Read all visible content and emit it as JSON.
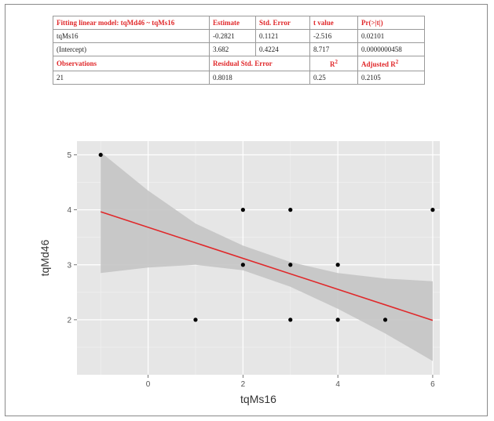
{
  "table": {
    "header": {
      "title": "Fitting linear model: tqMd46 ~ tqMs16",
      "estimate": "Estimate",
      "std_error": "Std. Error",
      "t_value": "t value",
      "pr": "Pr(>|t|)"
    },
    "rows": [
      {
        "term": "tqMs16",
        "estimate": "-0.2821",
        "std_error": "0.1121",
        "t_value": "-2.516",
        "pr": "0.02101"
      },
      {
        "term": "(Intercept)",
        "estimate": "3.682",
        "std_error": "0.4224",
        "t_value": "8.717",
        "pr": "0.0000000458"
      }
    ],
    "stats_header": {
      "observations": "Observations",
      "residual_se": "Residual Std. Error",
      "r2": "R",
      "adj_r2": "Adjusted R"
    },
    "stats": {
      "observations": "21",
      "residual_se": "0.8018",
      "r2": "0.25",
      "adj_r2": "0.2105"
    }
  },
  "colors": {
    "header_text": "#e0282a",
    "panel_bg": "#e6e6e6",
    "grid": "#ffffff",
    "fit_line": "#e0282a",
    "ribbon": "#c2c2c2",
    "point": "#000000"
  },
  "chart_data": {
    "type": "scatter",
    "xlabel": "tqMs16",
    "ylabel": "tqMd46",
    "xlim": [
      -1.5,
      6.15
    ],
    "ylim": [
      1.0,
      5.25
    ],
    "xticks": [
      0,
      2,
      4,
      6
    ],
    "yticks": [
      2,
      3,
      4,
      5
    ],
    "grid": true,
    "points": [
      {
        "x": -1,
        "y": 5
      },
      {
        "x": 1,
        "y": 2
      },
      {
        "x": 2,
        "y": 4
      },
      {
        "x": 2,
        "y": 3
      },
      {
        "x": 3,
        "y": 4
      },
      {
        "x": 3,
        "y": 3
      },
      {
        "x": 3,
        "y": 2
      },
      {
        "x": 4,
        "y": 3
      },
      {
        "x": 4,
        "y": 2
      },
      {
        "x": 5,
        "y": 2
      },
      {
        "x": 6,
        "y": 4
      }
    ],
    "fit": {
      "intercept": 3.682,
      "slope": -0.2821,
      "x_range": [
        -1,
        6
      ]
    },
    "ribbon": [
      {
        "x": -1,
        "lo": 2.85,
        "hi": 5.05
      },
      {
        "x": 0,
        "lo": 2.95,
        "hi": 4.35
      },
      {
        "x": 1,
        "lo": 3.0,
        "hi": 3.75
      },
      {
        "x": 2,
        "lo": 2.9,
        "hi": 3.35
      },
      {
        "x": 3,
        "lo": 2.6,
        "hi": 3.05
      },
      {
        "x": 4,
        "lo": 2.2,
        "hi": 2.85
      },
      {
        "x": 5,
        "lo": 1.75,
        "hi": 2.75
      },
      {
        "x": 6,
        "lo": 1.25,
        "hi": 2.7
      }
    ]
  }
}
